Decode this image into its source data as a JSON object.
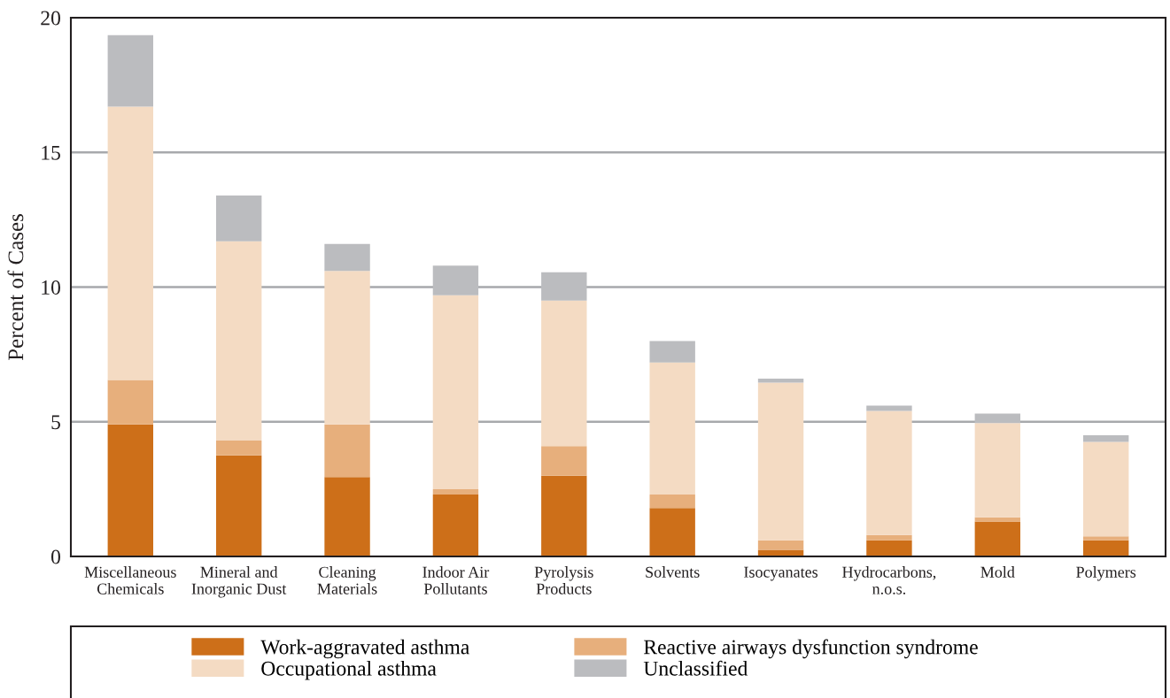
{
  "chart_data": {
    "type": "bar",
    "stacked": true,
    "ylabel": "Percent of Cases",
    "categories": [
      "Miscellaneous\nChemicals",
      "Mineral and\nInorganic Dust",
      "Cleaning\nMaterials",
      "Indoor Air\nPollutants",
      "Pyrolysis\nProducts",
      "Solvents",
      "Isocyanates",
      "Hydrocarbons,\nn.o.s.",
      "Mold",
      "Polymers"
    ],
    "series": [
      {
        "name": "Work-aggravated asthma",
        "color": "#cd6f19",
        "values": [
          4.9,
          3.75,
          2.95,
          2.3,
          3.0,
          1.8,
          0.25,
          0.6,
          1.3,
          0.6
        ]
      },
      {
        "name": "Reactive airways dysfunction syndrome",
        "color": "#e7af7c",
        "values": [
          1.65,
          0.55,
          1.95,
          0.2,
          1.1,
          0.5,
          0.35,
          0.2,
          0.15,
          0.15
        ]
      },
      {
        "name": "Occupational asthma",
        "color": "#f4dbc3",
        "values": [
          10.15,
          7.4,
          5.7,
          7.2,
          5.4,
          4.9,
          5.85,
          4.6,
          3.5,
          3.5
        ]
      },
      {
        "name": "Unclassified",
        "color": "#bbbcbf",
        "values": [
          2.65,
          1.7,
          1.0,
          1.1,
          1.05,
          0.8,
          0.15,
          0.2,
          0.35,
          0.25
        ]
      }
    ],
    "ylim": [
      0,
      20
    ],
    "yticks": [
      0,
      5,
      10,
      15,
      20
    ],
    "grid": "y",
    "legend": "bottom"
  }
}
